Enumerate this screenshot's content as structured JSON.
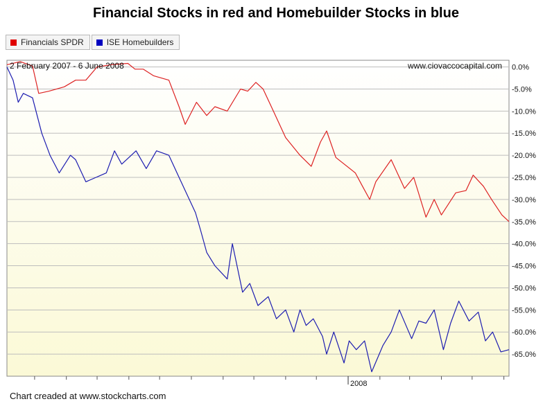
{
  "title": "Financial Stocks in red and Homebuilder Stocks in blue",
  "legend": [
    {
      "label": "Financials SPDR",
      "color": "#e00000"
    },
    {
      "label": "ISE Homebuilders",
      "color": "#0000c0"
    }
  ],
  "date_range": "2 February 2007 - 6 June 2008",
  "source": "www.ciovaccocapital.com",
  "footer": "Chart creaded at www.stockcharts.com",
  "colors": {
    "financials": "#dd2222",
    "homebuilders": "#1c1cb0",
    "gradient_top": "#ffffff",
    "gradient_bottom": "#fbf9d6"
  },
  "chart_data": {
    "type": "line",
    "title": "Financial Stocks in red and Homebuilder Stocks in blue",
    "subtitle": "2 February 2007 - 6 June 2008",
    "x_start": "2007-02-02",
    "x_end": "2008-06-06",
    "x_tick_labels": [
      {
        "date": "2008-01-01",
        "label": "2008"
      }
    ],
    "y_ticks": [
      "0.0%",
      "-5.0%",
      "-10.0%",
      "-15.0%",
      "-20.0%",
      "-25.0%",
      "-30.0%",
      "-35.0%",
      "-40.0%",
      "-45.0%",
      "-50.0%",
      "-55.0%",
      "-60.0%",
      "-65.0%"
    ],
    "ylim": [
      -70,
      1.5
    ],
    "grid": true,
    "legend_position": "top-left",
    "series": [
      {
        "name": "Financials SPDR",
        "color": "#dd2222",
        "x": [
          "2007-02-02",
          "2007-02-15",
          "2007-02-27",
          "2007-03-05",
          "2007-03-15",
          "2007-03-30",
          "2007-04-10",
          "2007-04-20",
          "2007-05-01",
          "2007-05-15",
          "2007-05-31",
          "2007-06-07",
          "2007-06-15",
          "2007-06-25",
          "2007-07-10",
          "2007-07-20",
          "2007-07-26",
          "2007-08-06",
          "2007-08-16",
          "2007-08-24",
          "2007-09-05",
          "2007-09-18",
          "2007-09-25",
          "2007-10-03",
          "2007-10-10",
          "2007-10-20",
          "2007-11-01",
          "2007-11-15",
          "2007-11-26",
          "2007-12-05",
          "2007-12-11",
          "2007-12-20",
          "2008-01-08",
          "2008-01-15",
          "2008-01-22",
          "2008-01-28",
          "2008-02-12",
          "2008-02-25",
          "2008-03-05",
          "2008-03-17",
          "2008-03-25",
          "2008-04-01",
          "2008-04-15",
          "2008-04-25",
          "2008-05-02",
          "2008-05-12",
          "2008-05-20",
          "2008-05-30",
          "2008-06-06"
        ],
        "y": [
          0.5,
          1.2,
          0.2,
          -6.0,
          -5.5,
          -4.5,
          -3.0,
          -3.0,
          0.0,
          0.5,
          0.8,
          -0.5,
          -0.5,
          -2.0,
          -3.0,
          -9.0,
          -13.0,
          -8.0,
          -11.0,
          -9.0,
          -10.0,
          -5.0,
          -5.5,
          -3.5,
          -5.0,
          -10.0,
          -16.0,
          -20.0,
          -22.5,
          -17.0,
          -14.5,
          -20.5,
          -24.0,
          -27.0,
          -30.0,
          -26.0,
          -21.0,
          -27.5,
          -25.0,
          -34.0,
          -30.0,
          -33.5,
          -28.5,
          -28.0,
          -24.5,
          -27.0,
          -30.0,
          -33.5,
          -35.0
        ]
      },
      {
        "name": "ISE Homebuilders",
        "color": "#1c1cb0",
        "x": [
          "2007-02-02",
          "2007-02-08",
          "2007-02-13",
          "2007-02-18",
          "2007-02-27",
          "2007-03-08",
          "2007-03-16",
          "2007-03-25",
          "2007-04-05",
          "2007-04-10",
          "2007-04-20",
          "2007-04-30",
          "2007-05-10",
          "2007-05-18",
          "2007-05-25",
          "2007-06-08",
          "2007-06-18",
          "2007-06-28",
          "2007-07-10",
          "2007-07-20",
          "2007-07-30",
          "2007-08-05",
          "2007-08-10",
          "2007-08-16",
          "2007-08-24",
          "2007-09-05",
          "2007-09-10",
          "2007-09-20",
          "2007-09-27",
          "2007-10-05",
          "2007-10-15",
          "2007-10-23",
          "2007-11-01",
          "2007-11-09",
          "2007-11-15",
          "2007-11-21",
          "2007-11-28",
          "2007-12-07",
          "2007-12-11",
          "2007-12-18",
          "2007-12-28",
          "2008-01-02",
          "2008-01-09",
          "2008-01-17",
          "2008-01-24",
          "2008-02-04",
          "2008-02-12",
          "2008-02-20",
          "2008-03-03",
          "2008-03-10",
          "2008-03-17",
          "2008-03-25",
          "2008-04-03",
          "2008-04-10",
          "2008-04-18",
          "2008-04-28",
          "2008-05-07",
          "2008-05-14",
          "2008-05-21",
          "2008-05-29",
          "2008-06-06"
        ],
        "y": [
          0.0,
          -3.0,
          -8.0,
          -6.0,
          -7.0,
          -15.0,
          -20.0,
          -24.0,
          -20.0,
          -21.0,
          -26.0,
          -25.0,
          -24.0,
          -19.0,
          -22.0,
          -19.0,
          -23.0,
          -19.0,
          -20.0,
          -25.0,
          -30.0,
          -33.0,
          -37.0,
          -42.0,
          -45.0,
          -48.0,
          -40.0,
          -51.0,
          -49.0,
          -54.0,
          -52.0,
          -57.0,
          -55.0,
          -60.0,
          -55.0,
          -58.5,
          -57.0,
          -61.0,
          -65.0,
          -60.0,
          -67.0,
          -62.0,
          -64.0,
          -62.0,
          -69.0,
          -63.0,
          -60.0,
          -55.0,
          -61.5,
          -57.5,
          -58.0,
          -55.0,
          -64.0,
          -58.0,
          -53.0,
          -57.5,
          -55.5,
          -62.0,
          -60.0,
          -64.5,
          -64.0
        ]
      }
    ]
  }
}
